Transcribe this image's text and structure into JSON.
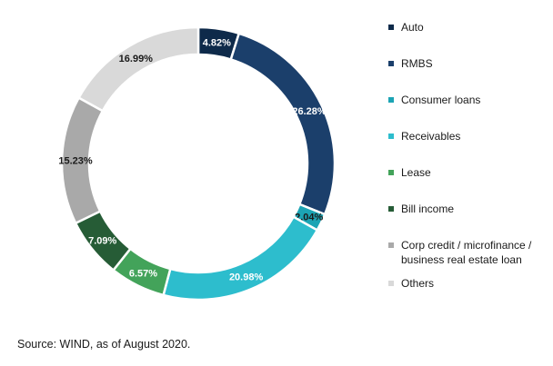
{
  "chart_data": {
    "type": "pie",
    "donut": true,
    "title": "",
    "slices": [
      {
        "label": "Auto",
        "value": 4.82,
        "display": "4.82%",
        "color": "#0e2a4a",
        "label_color": "#ffffff"
      },
      {
        "label": "RMBS",
        "value": 26.28,
        "display": "26.28%",
        "color": "#1b3f6b",
        "label_color": "#ffffff"
      },
      {
        "label": "Consumer loans",
        "value": 2.04,
        "display": "2.04%",
        "color": "#1ca4b4",
        "label_color": "#1a1a1a"
      },
      {
        "label": "Receivables",
        "value": 20.98,
        "display": "20.98%",
        "color": "#2dbdcd",
        "label_color": "#ffffff"
      },
      {
        "label": "Lease",
        "value": 6.57,
        "display": "6.57%",
        "color": "#43a35a",
        "label_color": "#ffffff"
      },
      {
        "label": "Bill income",
        "value": 7.09,
        "display": "7.09%",
        "color": "#265c36",
        "label_color": "#ffffff"
      },
      {
        "label": "Corp credit / microfinance / business real estate loan",
        "value": 15.23,
        "display": "15.23%",
        "color": "#a9a9a9",
        "label_color": "#1a1a1a"
      },
      {
        "label": "Others",
        "value": 16.99,
        "display": "16.99%",
        "color": "#d9d9d9",
        "label_color": "#1a1a1a"
      }
    ],
    "legend": {
      "placement": "right",
      "items": [
        {
          "label": "Auto",
          "color": "#0e2a4a"
        },
        {
          "label": "RMBS",
          "color": "#1b3f6b"
        },
        {
          "label": "Consumer loans",
          "color": "#1ca4b4"
        },
        {
          "label": "Receivables",
          "color": "#2dbdcd"
        },
        {
          "label": "Lease",
          "color": "#43a35a"
        },
        {
          "label": "Bill income",
          "color": "#265c36"
        },
        {
          "label": "Corp credit / microfinance / business real estate loan",
          "color": "#a9a9a9"
        },
        {
          "label": "Others",
          "color": "#d9d9d9"
        }
      ]
    }
  },
  "source_note": "Source: WIND, as of August 2020."
}
